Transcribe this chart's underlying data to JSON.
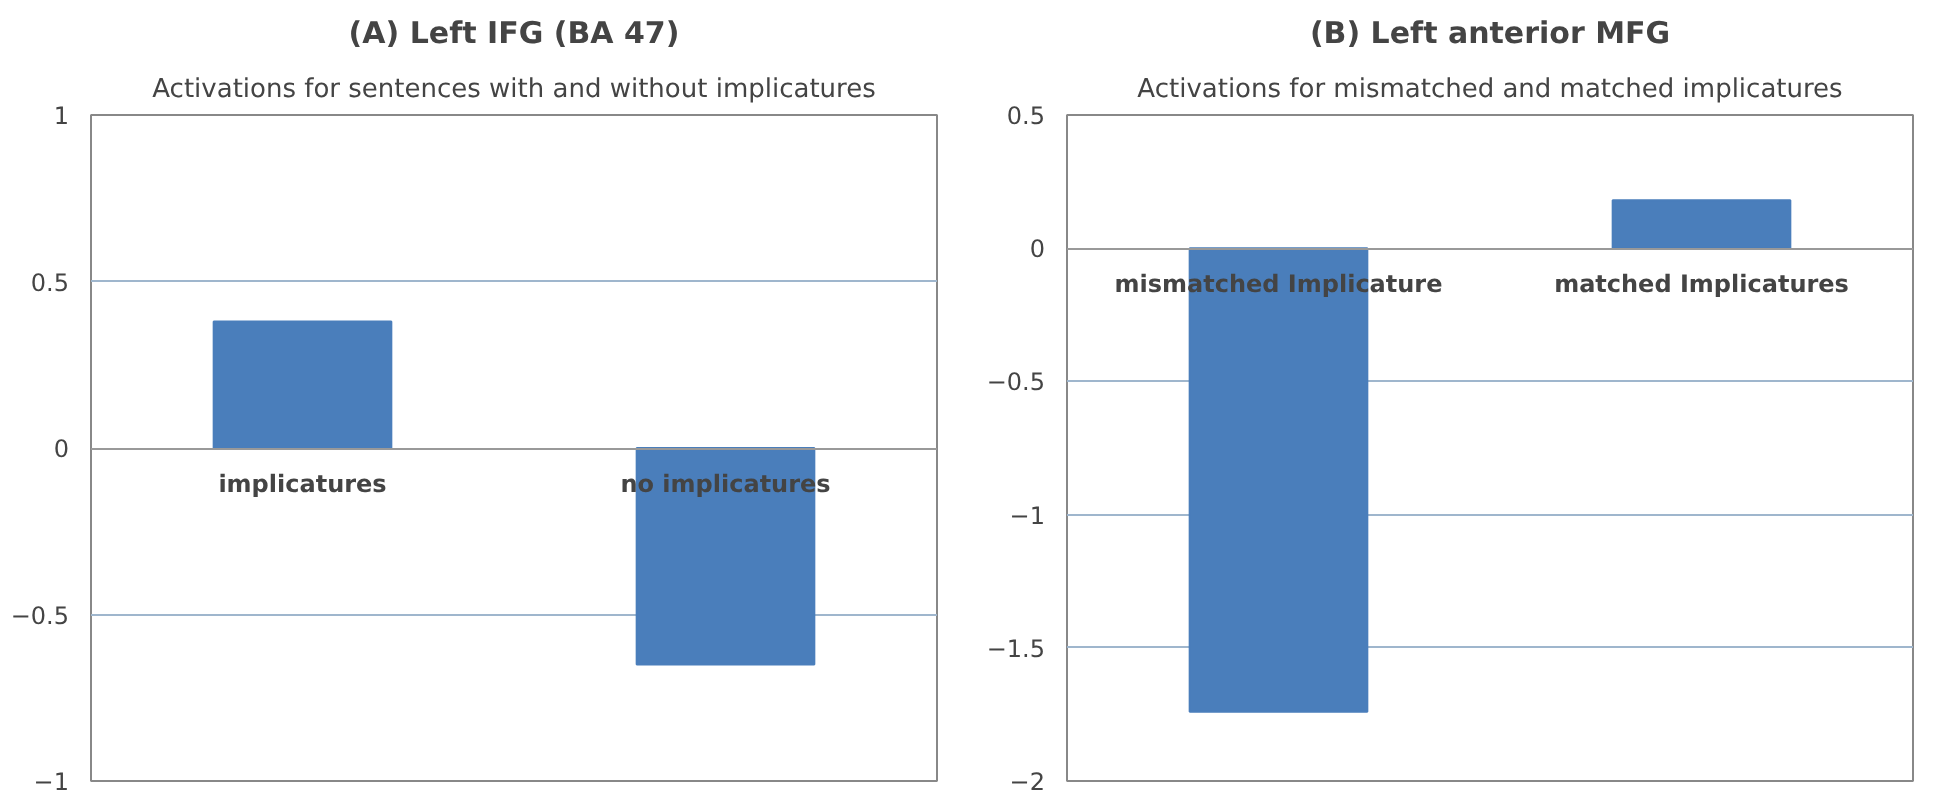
{
  "chart_data": [
    {
      "type": "bar",
      "title": "(A) Left IFG (BA 47)",
      "subtitle": "Activations for sentences with and without implicatures",
      "categories": [
        "implicatures",
        "no implicatures"
      ],
      "values": [
        0.38,
        -0.65
      ],
      "color": "#4a7ebb",
      "ylim": [
        -1,
        1
      ],
      "yticks": [
        -1,
        -0.5,
        0,
        0.5,
        1
      ],
      "grid": "y"
    },
    {
      "type": "bar",
      "title": "(B) Left anterior MFG",
      "subtitle": "Activations for mismatched and matched implicatures",
      "categories": [
        "mismatched Implicature",
        "matched Implicatures"
      ],
      "values": [
        -1.74,
        0.18
      ],
      "color": "#4a7ebb",
      "ylim": [
        -2,
        0.5
      ],
      "yticks": [
        -2,
        -1.5,
        -1,
        -0.5,
        0,
        0.5
      ],
      "grid": "y"
    }
  ]
}
